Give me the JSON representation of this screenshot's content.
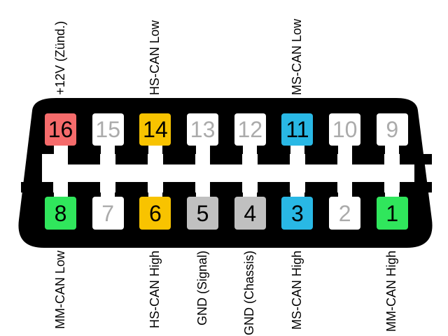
{
  "diagram": {
    "kind": "16-pin OBD-II connector pinout",
    "rows": {
      "top_order": "16 to 9, left to right",
      "bottom_order": "8 to 1, left to right"
    }
  },
  "colors": {
    "body": "#000000",
    "channel": "#FFFFFF",
    "pin_power": "#F56B6B",
    "pin_hs_can": "#F8C300",
    "pin_ms_can": "#29B8E5",
    "pin_mm_can": "#30E65C",
    "pin_ground": "#C0C0C0",
    "pin_unused": "#FFFFFF",
    "active_number": "#000000",
    "inactive_number": "#ABABAB",
    "label_text": "#000000"
  },
  "pins_top": [
    {
      "number": "16",
      "color": "#F56B6B",
      "label": "+12V (Zünd.)"
    },
    {
      "number": "15",
      "color": "#FFFFFF",
      "label": ""
    },
    {
      "number": "14",
      "color": "#F8C300",
      "label": "HS-CAN Low"
    },
    {
      "number": "13",
      "color": "#FFFFFF",
      "label": ""
    },
    {
      "number": "12",
      "color": "#FFFFFF",
      "label": ""
    },
    {
      "number": "11",
      "color": "#29B8E5",
      "label": "MS-CAN Low"
    },
    {
      "number": "10",
      "color": "#FFFFFF",
      "label": ""
    },
    {
      "number": "9",
      "color": "#FFFFFF",
      "label": ""
    }
  ],
  "pins_bottom": [
    {
      "number": "8",
      "color": "#30E65C",
      "label": "MM-CAN Low"
    },
    {
      "number": "7",
      "color": "#FFFFFF",
      "label": ""
    },
    {
      "number": "6",
      "color": "#F8C300",
      "label": "HS-CAN High"
    },
    {
      "number": "5",
      "color": "#C0C0C0",
      "label": "GND (Signal)"
    },
    {
      "number": "4",
      "color": "#C0C0C0",
      "label": "GND (Chassis)"
    },
    {
      "number": "3",
      "color": "#29B8E5",
      "label": "MS-CAN High"
    },
    {
      "number": "2",
      "color": "#FFFFFF",
      "label": ""
    },
    {
      "number": "1",
      "color": "#30E65C",
      "label": "MM-CAN High"
    }
  ]
}
